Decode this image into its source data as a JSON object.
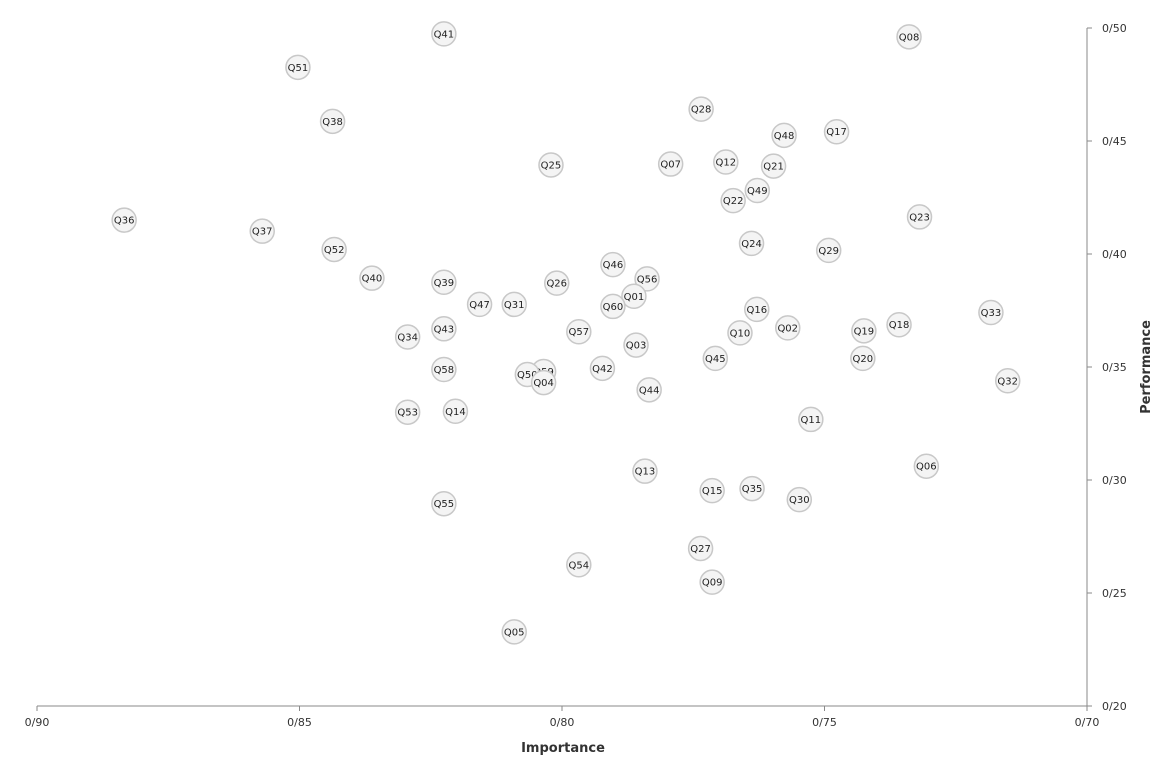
{
  "chart_data": {
    "type": "scatter",
    "xlabel": "Importance",
    "ylabel": "Performance",
    "xlim": [
      0.9,
      0.7
    ],
    "x_reversed": true,
    "ylim": [
      0.2,
      0.5
    ],
    "x_ticks": [
      0.9,
      0.85,
      0.8,
      0.75,
      0.7
    ],
    "x_tick_labels": [
      "0/90",
      "0/85",
      "0/80",
      "0/75",
      "0/70"
    ],
    "y_ticks": [
      0.5,
      0.45,
      0.4,
      0.35,
      0.3,
      0.25,
      0.2
    ],
    "y_tick_labels": [
      "0/50",
      "0/45",
      "0/40",
      "0/35",
      "0/30",
      "0/25",
      "0/20"
    ],
    "grid": false,
    "y_axis_position": "right",
    "marker_color": "#f4f4f4",
    "marker_stroke": "#c8c8c8",
    "points": [
      {
        "label": "Q41",
        "x": 0.8225,
        "y": 0.4974
      },
      {
        "label": "Q08",
        "x": 0.7339,
        "y": 0.4961
      },
      {
        "label": "Q51",
        "x": 0.8503,
        "y": 0.4826
      },
      {
        "label": "Q28",
        "x": 0.7735,
        "y": 0.4641
      },
      {
        "label": "Q38",
        "x": 0.8437,
        "y": 0.4587
      },
      {
        "label": "Q17",
        "x": 0.7477,
        "y": 0.4541
      },
      {
        "label": "Q48",
        "x": 0.7577,
        "y": 0.4525
      },
      {
        "label": "Q12",
        "x": 0.7688,
        "y": 0.4407
      },
      {
        "label": "Q07",
        "x": 0.7793,
        "y": 0.4398
      },
      {
        "label": "Q25",
        "x": 0.8021,
        "y": 0.4394
      },
      {
        "label": "Q21",
        "x": 0.7597,
        "y": 0.4389
      },
      {
        "label": "Q49",
        "x": 0.7628,
        "y": 0.4281
      },
      {
        "label": "Q22",
        "x": 0.7674,
        "y": 0.4236
      },
      {
        "label": "Q23",
        "x": 0.7319,
        "y": 0.4164
      },
      {
        "label": "Q36",
        "x": 0.8834,
        "y": 0.415
      },
      {
        "label": "Q37",
        "x": 0.8571,
        "y": 0.4101
      },
      {
        "label": "Q24",
        "x": 0.7639,
        "y": 0.4047
      },
      {
        "label": "Q52",
        "x": 0.8434,
        "y": 0.402
      },
      {
        "label": "Q29",
        "x": 0.7492,
        "y": 0.4016
      },
      {
        "label": "Q46",
        "x": 0.7903,
        "y": 0.3953
      },
      {
        "label": "Q40",
        "x": 0.8362,
        "y": 0.3893
      },
      {
        "label": "Q56",
        "x": 0.7838,
        "y": 0.389
      },
      {
        "label": "Q39",
        "x": 0.8225,
        "y": 0.3875
      },
      {
        "label": "Q26",
        "x": 0.801,
        "y": 0.3871
      },
      {
        "label": "Q01",
        "x": 0.7863,
        "y": 0.3813
      },
      {
        "label": "Q47",
        "x": 0.8157,
        "y": 0.3777
      },
      {
        "label": "Q31",
        "x": 0.8091,
        "y": 0.3777
      },
      {
        "label": "Q60",
        "x": 0.7903,
        "y": 0.3768
      },
      {
        "label": "Q16",
        "x": 0.7629,
        "y": 0.3755
      },
      {
        "label": "Q33",
        "x": 0.7183,
        "y": 0.3741
      },
      {
        "label": "Q18",
        "x": 0.7358,
        "y": 0.3687
      },
      {
        "label": "Q02",
        "x": 0.757,
        "y": 0.3673
      },
      {
        "label": "Q43",
        "x": 0.8225,
        "y": 0.3669
      },
      {
        "label": "Q19",
        "x": 0.7425,
        "y": 0.366
      },
      {
        "label": "Q57",
        "x": 0.7968,
        "y": 0.3656
      },
      {
        "label": "Q10",
        "x": 0.7661,
        "y": 0.3651
      },
      {
        "label": "Q34",
        "x": 0.8294,
        "y": 0.3633
      },
      {
        "label": "Q03",
        "x": 0.7859,
        "y": 0.3597
      },
      {
        "label": "Q45",
        "x": 0.7708,
        "y": 0.3538
      },
      {
        "label": "Q20",
        "x": 0.7427,
        "y": 0.3538
      },
      {
        "label": "Q42",
        "x": 0.7923,
        "y": 0.3494
      },
      {
        "label": "Q58",
        "x": 0.8225,
        "y": 0.3489
      },
      {
        "label": "Q59",
        "x": 0.8035,
        "y": 0.348
      },
      {
        "label": "Q50",
        "x": 0.8066,
        "y": 0.3467
      },
      {
        "label": "Q04",
        "x": 0.8035,
        "y": 0.3431
      },
      {
        "label": "Q32",
        "x": 0.7151,
        "y": 0.3439
      },
      {
        "label": "Q44",
        "x": 0.7834,
        "y": 0.3399
      },
      {
        "label": "Q14",
        "x": 0.8203,
        "y": 0.3304
      },
      {
        "label": "Q53",
        "x": 0.8294,
        "y": 0.33
      },
      {
        "label": "Q11",
        "x": 0.7526,
        "y": 0.3268
      },
      {
        "label": "Q06",
        "x": 0.7306,
        "y": 0.3061
      },
      {
        "label": "Q13",
        "x": 0.7842,
        "y": 0.3039
      },
      {
        "label": "Q35",
        "x": 0.7638,
        "y": 0.2962
      },
      {
        "label": "Q15",
        "x": 0.7714,
        "y": 0.2953
      },
      {
        "label": "Q30",
        "x": 0.7548,
        "y": 0.2913
      },
      {
        "label": "Q55",
        "x": 0.8225,
        "y": 0.2895
      },
      {
        "label": "Q27",
        "x": 0.7736,
        "y": 0.2697
      },
      {
        "label": "Q54",
        "x": 0.7968,
        "y": 0.2625
      },
      {
        "label": "Q09",
        "x": 0.7714,
        "y": 0.2548
      },
      {
        "label": "Q05",
        "x": 0.8091,
        "y": 0.2328
      }
    ]
  }
}
